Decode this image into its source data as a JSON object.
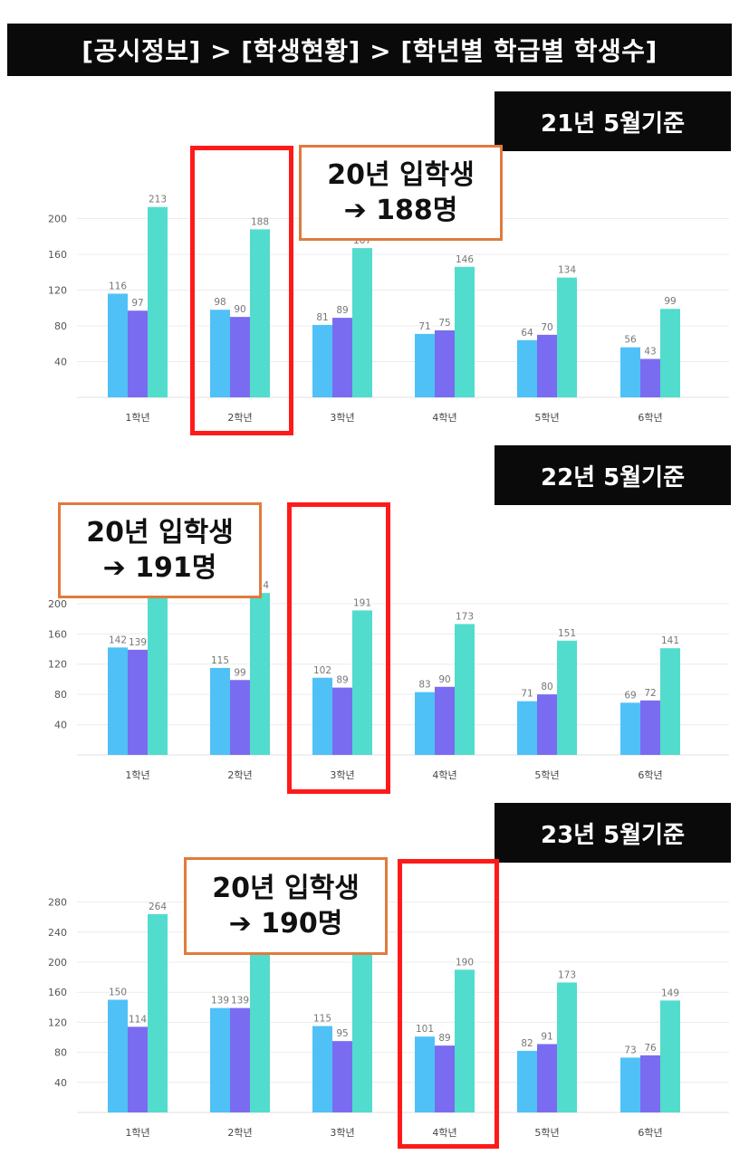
{
  "header": {
    "title": "[공시정보] > [학생현황] > [학년별 학급별 학생수]"
  },
  "colors": {
    "series_a": "#4fc1f7",
    "series_b": "#7a6cf0",
    "series_c": "#52dccd",
    "highlight": "#ff1a1a",
    "callout_border": "#e07b3c"
  },
  "panels": [
    {
      "date_label": "21년 5월기준",
      "callout": {
        "line1": "20년 입학생",
        "line2": "➔ 188명"
      },
      "highlighted_category": "2학년"
    },
    {
      "date_label": "22년 5월기준",
      "callout": {
        "line1": "20년 입학생",
        "line2": "➔ 191명"
      },
      "highlighted_category": "3학년"
    },
    {
      "date_label": "23년 5월기준",
      "callout": {
        "line1": "20년 입학생",
        "line2": "➔ 190명"
      },
      "highlighted_category": "4학년"
    }
  ],
  "chart_data": [
    {
      "type": "bar",
      "categories": [
        "1학년",
        "2학년",
        "3학년",
        "4학년",
        "5학년",
        "6학년"
      ],
      "series": [
        {
          "values": [
            116,
            98,
            81,
            71,
            64,
            56
          ]
        },
        {
          "values": [
            97,
            90,
            89,
            75,
            70,
            43
          ]
        },
        {
          "values": [
            213,
            188,
            167,
            146,
            134,
            99
          ]
        }
      ],
      "yticks": [
        40,
        80,
        120,
        160,
        200
      ],
      "ylim": [
        0,
        240
      ],
      "grid": true,
      "title": "",
      "xlabel": "",
      "ylabel": ""
    },
    {
      "type": "bar",
      "categories": [
        "1학년",
        "2학년",
        "3학년",
        "4학년",
        "5학년",
        "6학년"
      ],
      "series": [
        {
          "values": [
            142,
            115,
            102,
            83,
            71,
            69
          ]
        },
        {
          "values": [
            139,
            99,
            89,
            90,
            80,
            72
          ]
        },
        {
          "values": [
            225,
            214,
            191,
            173,
            151,
            141
          ]
        }
      ],
      "yticks": [
        40,
        80,
        120,
        160,
        200
      ],
      "ylim": [
        0,
        280
      ],
      "grid": true,
      "title": "",
      "xlabel": "",
      "ylabel": ""
    },
    {
      "type": "bar",
      "categories": [
        "1학년",
        "2학년",
        "3학년",
        "4학년",
        "5학년",
        "6학년"
      ],
      "series": [
        {
          "values": [
            150,
            139,
            115,
            101,
            82,
            73
          ]
        },
        {
          "values": [
            114,
            139,
            95,
            89,
            91,
            76
          ]
        },
        {
          "values": [
            264,
            216,
            214,
            190,
            173,
            149
          ]
        }
      ],
      "yticks": [
        40,
        80,
        120,
        160,
        200,
        240,
        280
      ],
      "ylim": [
        0,
        300
      ],
      "grid": true,
      "title": "",
      "xlabel": "",
      "ylabel": ""
    }
  ]
}
